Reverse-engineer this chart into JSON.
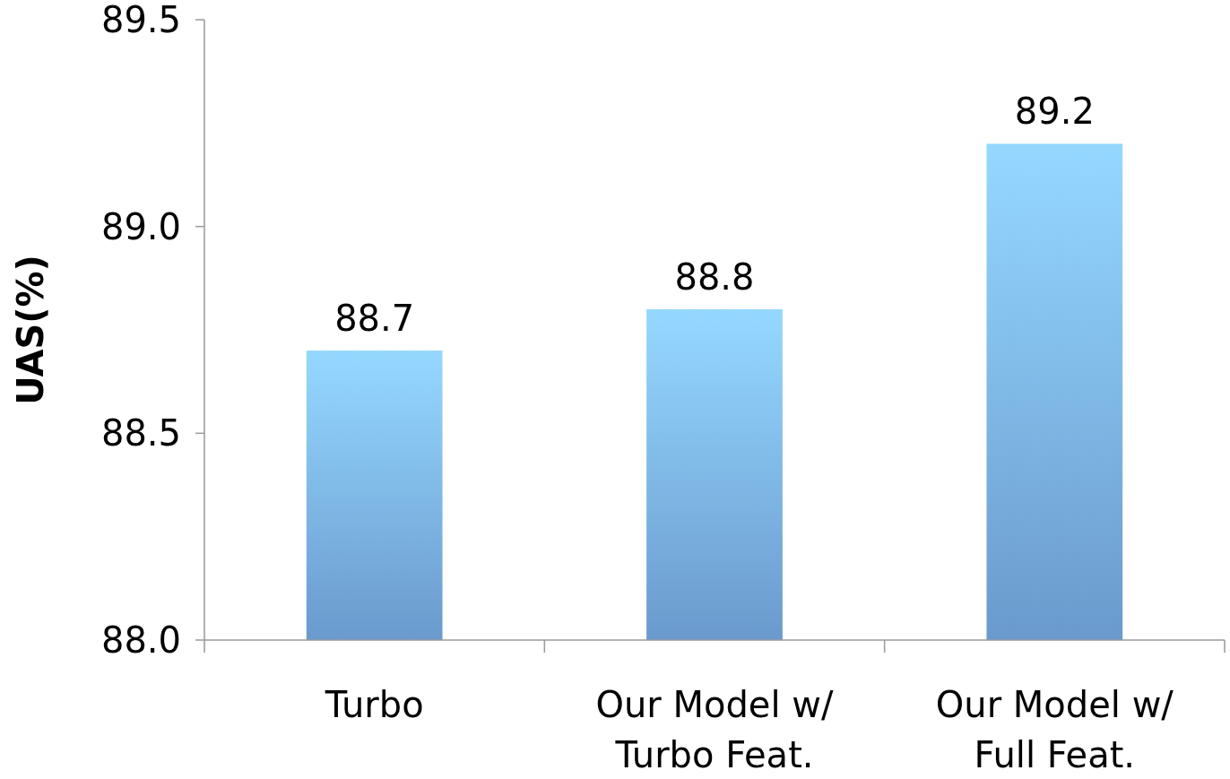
{
  "chart_data": {
    "type": "bar",
    "ylabel": "UAS(%)",
    "categories": [
      "Turbo",
      "Our Model w/\nTurbo Feat.",
      "Our Model w/\nFull Feat."
    ],
    "values": [
      88.7,
      88.8,
      89.2
    ],
    "color": "#78aee8",
    "ylim": [
      88.0,
      89.5
    ],
    "yticks": [
      {
        "value": 88.0,
        "label": "88.0"
      },
      {
        "value": 88.5,
        "label": "88.5"
      },
      {
        "value": 89.0,
        "label": "89.0"
      },
      {
        "value": 89.5,
        "label": "89.5"
      }
    ],
    "data_labels": true
  }
}
